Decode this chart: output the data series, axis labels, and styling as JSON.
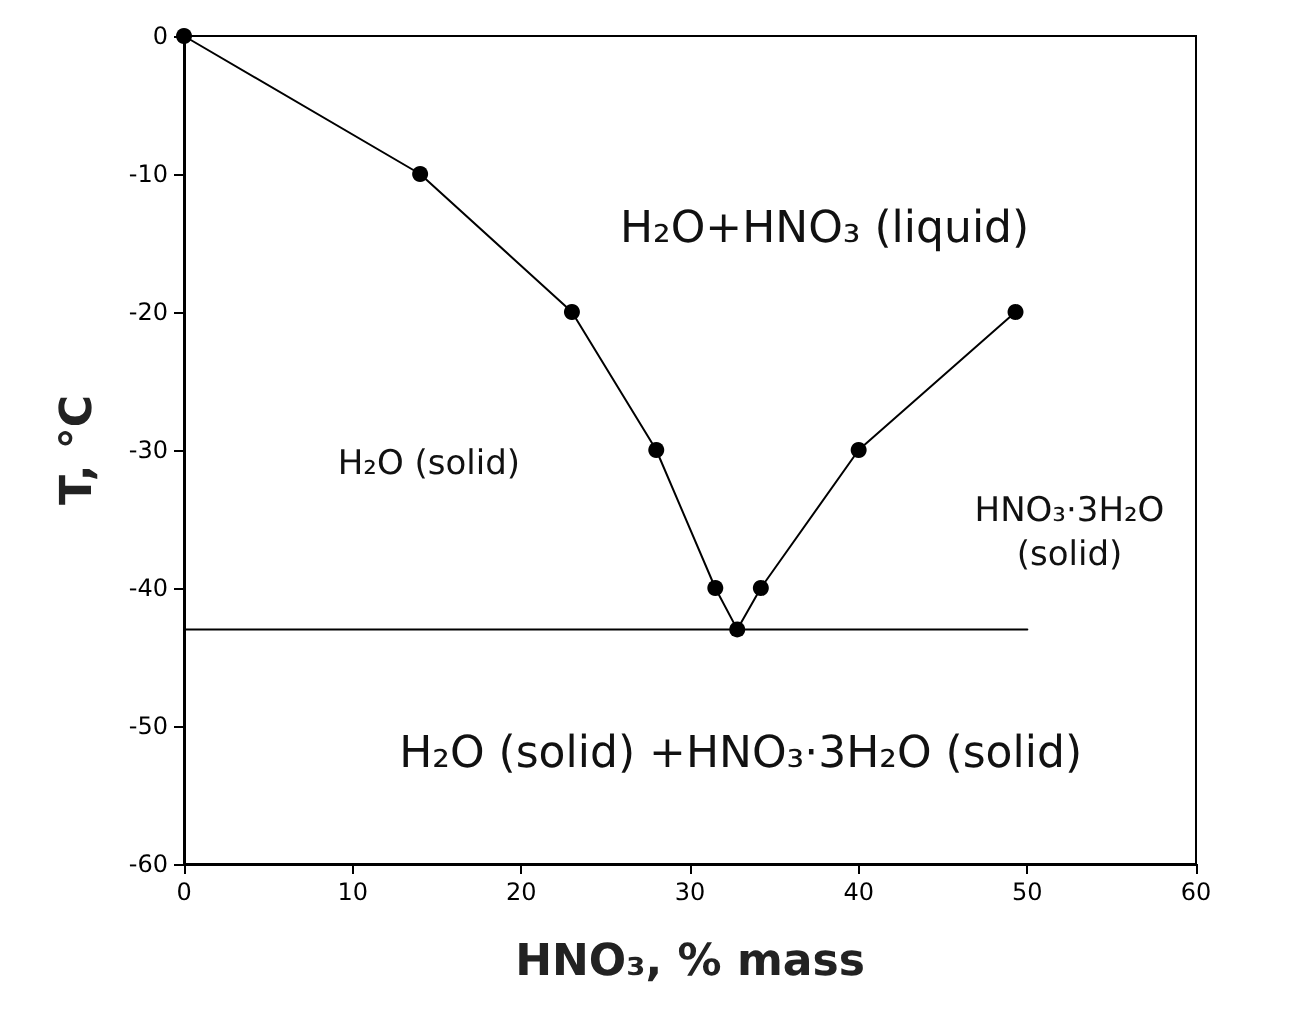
{
  "chart_data": {
    "type": "line",
    "xlabel": "HNO₃, % mass",
    "ylabel": "T, °C",
    "xlim": [
      0,
      60
    ],
    "xticks": [
      0,
      10,
      20,
      30,
      40,
      50,
      60
    ],
    "ylim": [
      -60,
      0
    ],
    "yticks": [
      -60,
      -50,
      -40,
      -30,
      -20,
      -10,
      0
    ],
    "grid": false,
    "marker": "circle",
    "line_style": "solid",
    "series": [
      {
        "color": "#000000",
        "x": [
          0,
          14,
          23,
          28,
          31.5,
          32.8,
          34.2,
          40,
          49.3
        ],
        "values": [
          0,
          -10,
          -20,
          -30,
          -40,
          -43,
          -40,
          -30,
          -20
        ]
      },
      {
        "color": "#000000",
        "marker": "none",
        "x": [
          0,
          50
        ],
        "values": [
          -43,
          -43
        ]
      }
    ],
    "annotations": [
      "H₂O+HNO₃ (liquid)",
      "H₂O (solid)",
      "HNO₃·3H₂O (solid)",
      "H₂O (solid) +HNO₃·3H₂O (solid)"
    ]
  }
}
